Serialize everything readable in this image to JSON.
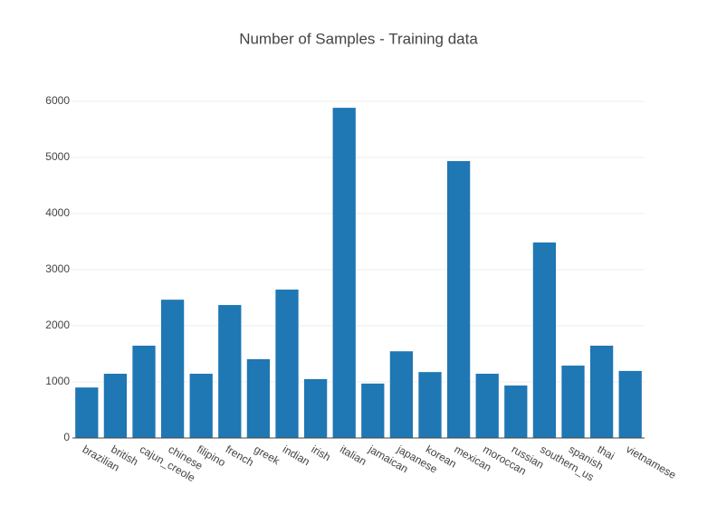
{
  "chart_data": {
    "type": "bar",
    "title": "Number of Samples - Training data",
    "categories": [
      "brazilian",
      "british",
      "cajun_creole",
      "chinese",
      "filipino",
      "french",
      "greek",
      "indian",
      "irish",
      "italian",
      "jamaican",
      "japanese",
      "korean",
      "mexican",
      "moroccan",
      "russian",
      "southern_us",
      "spanish",
      "thai",
      "vietnamese"
    ],
    "values": [
      900,
      1145,
      1645,
      2465,
      1145,
      2370,
      1405,
      2645,
      1050,
      5885,
      970,
      1545,
      1175,
      4935,
      1145,
      935,
      3485,
      1290,
      1645,
      1195
    ],
    "color": "#1f77b4",
    "ylim": [
      0,
      6000
    ],
    "yticks": [
      0,
      1000,
      2000,
      3000,
      4000,
      5000,
      6000
    ],
    "grid": true
  }
}
